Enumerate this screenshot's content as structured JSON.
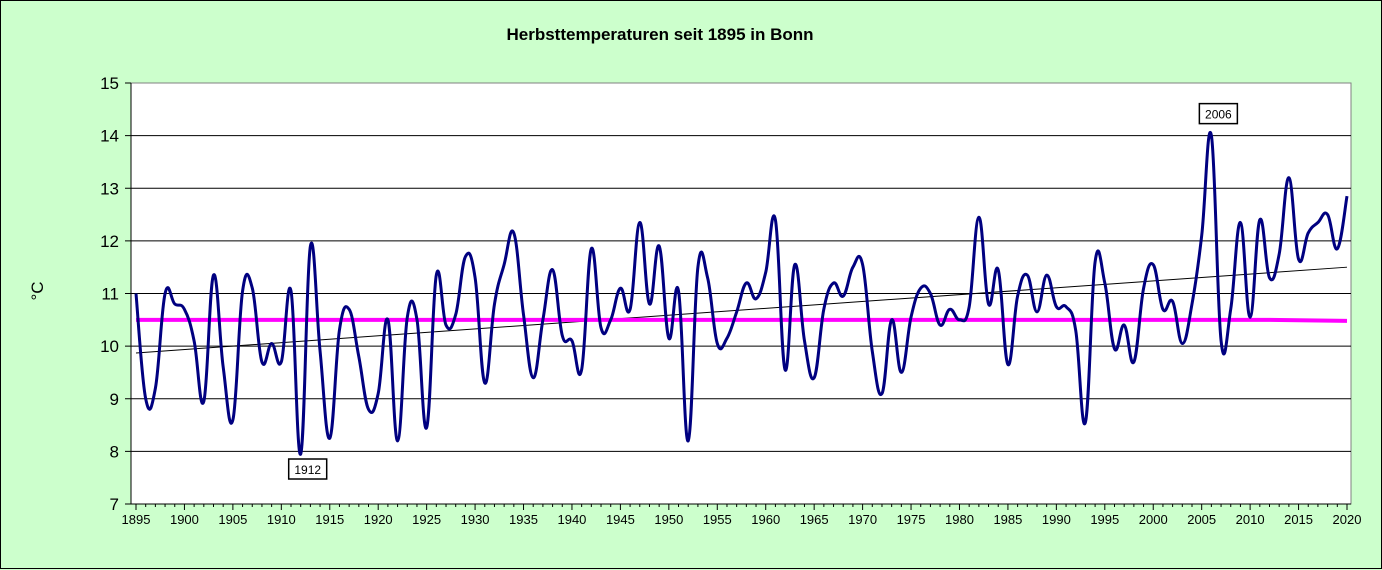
{
  "chart_data": {
    "type": "line",
    "title": "Herbsttemperaturen seit 1895 in Bonn",
    "xlabel": "",
    "ylabel": "°C",
    "xlim": [
      1895,
      2020
    ],
    "ylim": [
      7,
      15
    ],
    "y_ticks": [
      "7",
      "8",
      "9",
      "10",
      "11",
      "12",
      "13",
      "14",
      "15"
    ],
    "x_ticks": [
      "1895",
      "1900",
      "1905",
      "1910",
      "1915",
      "1920",
      "1925",
      "1930",
      "1935",
      "1940",
      "1945",
      "1950",
      "1955",
      "1960",
      "1965",
      "1970",
      "1975",
      "1980",
      "1985",
      "1990",
      "1995",
      "2000",
      "2005",
      "2010",
      "2015",
      "2020"
    ],
    "grid": "horizontal",
    "colors": {
      "series": "#000080",
      "mean": "#ff00ff",
      "trend": "#000000",
      "background": "#ccffcc",
      "plot_area": "#ffffff"
    },
    "x": [
      1895,
      1896,
      1897,
      1898,
      1899,
      1900,
      1901,
      1902,
      1903,
      1904,
      1905,
      1906,
      1907,
      1908,
      1909,
      1910,
      1911,
      1912,
      1913,
      1914,
      1915,
      1916,
      1917,
      1918,
      1919,
      1920,
      1921,
      1922,
      1923,
      1924,
      1925,
      1926,
      1927,
      1928,
      1929,
      1930,
      1931,
      1932,
      1933,
      1934,
      1935,
      1936,
      1937,
      1938,
      1939,
      1940,
      1941,
      1942,
      1943,
      1944,
      1945,
      1946,
      1947,
      1948,
      1949,
      1950,
      1951,
      1952,
      1953,
      1954,
      1955,
      1956,
      1957,
      1958,
      1959,
      1960,
      1961,
      1962,
      1963,
      1964,
      1965,
      1966,
      1967,
      1968,
      1969,
      1970,
      1971,
      1972,
      1973,
      1974,
      1975,
      1976,
      1977,
      1978,
      1979,
      1980,
      1981,
      1982,
      1983,
      1984,
      1985,
      1986,
      1987,
      1988,
      1989,
      1990,
      1991,
      1992,
      1993,
      1994,
      1995,
      1996,
      1997,
      1998,
      1999,
      2000,
      2001,
      2002,
      2003,
      2004,
      2005,
      2006,
      2007,
      2008,
      2009,
      2010,
      2011,
      2012,
      2013,
      2014,
      2015,
      2016,
      2017,
      2018,
      2019,
      2020
    ],
    "series": [
      {
        "values": [
          11.0,
          9.0,
          9.2,
          11.0,
          10.8,
          10.7,
          10.1,
          8.95,
          11.35,
          9.6,
          8.6,
          11.05,
          11.1,
          9.7,
          10.05,
          9.7,
          11.05,
          7.95,
          11.9,
          9.9,
          8.25,
          10.3,
          10.7,
          9.8,
          8.8,
          9.1,
          10.5,
          8.2,
          10.55,
          10.5,
          8.45,
          11.35,
          10.4,
          10.6,
          11.7,
          11.3,
          9.3,
          10.8,
          11.55,
          12.15,
          10.6,
          9.4,
          10.5,
          11.45,
          10.2,
          10.1,
          9.55,
          11.85,
          10.35,
          10.5,
          11.1,
          10.7,
          12.35,
          10.8,
          11.9,
          10.15,
          11.05,
          8.2,
          11.5,
          11.3,
          10.05,
          10.15,
          10.65,
          11.2,
          10.9,
          11.4,
          12.4,
          9.55,
          11.55,
          10.1,
          9.4,
          10.7,
          11.2,
          10.95,
          11.5,
          11.55,
          9.9,
          9.1,
          10.5,
          9.5,
          10.55,
          11.1,
          11.0,
          10.4,
          10.7,
          10.5,
          10.75,
          12.45,
          10.8,
          11.45,
          9.65,
          10.95,
          11.35,
          10.65,
          11.35,
          10.75,
          10.75,
          10.3,
          8.55,
          11.6,
          11.2,
          9.95,
          10.4,
          9.7,
          11.1,
          11.55,
          10.7,
          10.85,
          10.05,
          10.8,
          12.1,
          14.0,
          10.1,
          10.7,
          12.35,
          10.55,
          12.4,
          11.3,
          11.75,
          13.2,
          11.65,
          12.15,
          12.35,
          12.5,
          11.85,
          12.85
        ]
      }
    ],
    "mean_line": {
      "from": [
        1895,
        2012
      ],
      "value_start": 10.5,
      "value_end": 10.48
    },
    "trend_line": {
      "start": [
        1895,
        9.87
      ],
      "end": [
        2020,
        11.5
      ]
    },
    "annotations": [
      {
        "label": "1912",
        "x": 1912,
        "y": 7.95
      },
      {
        "label": "2006",
        "x": 2006,
        "y": 14.0
      }
    ]
  }
}
